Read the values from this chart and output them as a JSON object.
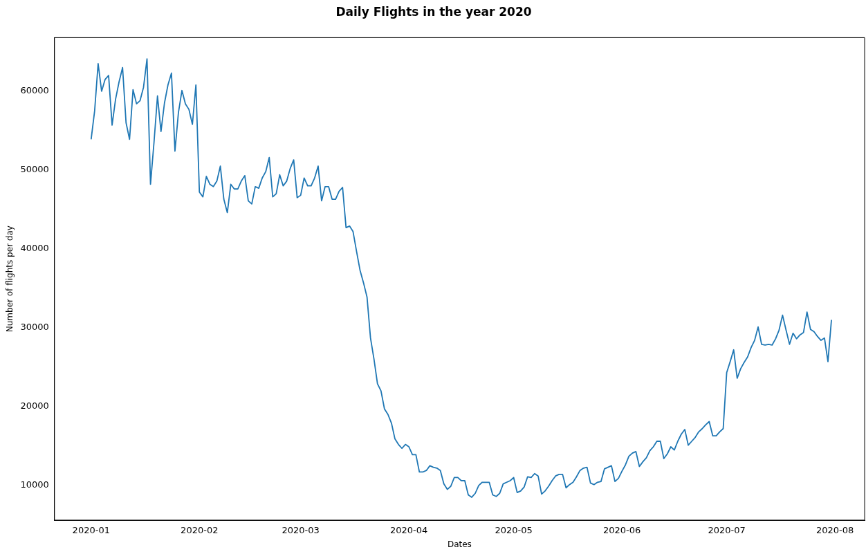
{
  "chart_data": {
    "type": "line",
    "title": "Daily Flights in the year 2020",
    "xlabel": "Dates",
    "ylabel": "Number of flights per day",
    "x": [
      "2020-01-01",
      "2020-01-02",
      "2020-01-03",
      "2020-01-04",
      "2020-01-05",
      "2020-01-06",
      "2020-01-07",
      "2020-01-08",
      "2020-01-09",
      "2020-01-10",
      "2020-01-11",
      "2020-01-12",
      "2020-01-13",
      "2020-01-14",
      "2020-01-15",
      "2020-01-16",
      "2020-01-17",
      "2020-01-18",
      "2020-01-19",
      "2020-01-20",
      "2020-01-21",
      "2020-01-22",
      "2020-01-23",
      "2020-01-24",
      "2020-01-25",
      "2020-01-26",
      "2020-01-27",
      "2020-01-28",
      "2020-01-29",
      "2020-01-30",
      "2020-01-31",
      "2020-02-01",
      "2020-02-02",
      "2020-02-03",
      "2020-02-04",
      "2020-02-05",
      "2020-02-06",
      "2020-02-07",
      "2020-02-08",
      "2020-02-09",
      "2020-02-10",
      "2020-02-11",
      "2020-02-12",
      "2020-02-13",
      "2020-02-14",
      "2020-02-15",
      "2020-02-16",
      "2020-02-17",
      "2020-02-18",
      "2020-02-19",
      "2020-02-20",
      "2020-02-21",
      "2020-02-22",
      "2020-02-23",
      "2020-02-24",
      "2020-02-25",
      "2020-02-26",
      "2020-02-27",
      "2020-02-28",
      "2020-02-29",
      "2020-03-01",
      "2020-03-02",
      "2020-03-03",
      "2020-03-04",
      "2020-03-05",
      "2020-03-06",
      "2020-03-07",
      "2020-03-08",
      "2020-03-09",
      "2020-03-10",
      "2020-03-11",
      "2020-03-12",
      "2020-03-13",
      "2020-03-14",
      "2020-03-15",
      "2020-03-16",
      "2020-03-17",
      "2020-03-18",
      "2020-03-19",
      "2020-03-20",
      "2020-03-21",
      "2020-03-22",
      "2020-03-23",
      "2020-03-24",
      "2020-03-25",
      "2020-03-26",
      "2020-03-27",
      "2020-03-28",
      "2020-03-29",
      "2020-03-30",
      "2020-03-31",
      "2020-04-01",
      "2020-04-02",
      "2020-04-03",
      "2020-04-04",
      "2020-04-05",
      "2020-04-06",
      "2020-04-07",
      "2020-04-08",
      "2020-04-09",
      "2020-04-10",
      "2020-04-11",
      "2020-04-12",
      "2020-04-13",
      "2020-04-14",
      "2020-04-15",
      "2020-04-16",
      "2020-04-17",
      "2020-04-18",
      "2020-04-19",
      "2020-04-20",
      "2020-04-21",
      "2020-04-22",
      "2020-04-23",
      "2020-04-24",
      "2020-04-25",
      "2020-04-26",
      "2020-04-27",
      "2020-04-28",
      "2020-04-29",
      "2020-04-30",
      "2020-05-01",
      "2020-05-02",
      "2020-05-03",
      "2020-05-04",
      "2020-05-05",
      "2020-05-06",
      "2020-05-07",
      "2020-05-08",
      "2020-05-09",
      "2020-05-10",
      "2020-05-11",
      "2020-05-12",
      "2020-05-13",
      "2020-05-14",
      "2020-05-15",
      "2020-05-16",
      "2020-05-17",
      "2020-05-18",
      "2020-05-19",
      "2020-05-20",
      "2020-05-21",
      "2020-05-22",
      "2020-05-23",
      "2020-05-24",
      "2020-05-25",
      "2020-05-26",
      "2020-05-27",
      "2020-05-28",
      "2020-05-29",
      "2020-05-30",
      "2020-05-31",
      "2020-06-01",
      "2020-06-02",
      "2020-06-03",
      "2020-06-04",
      "2020-06-05",
      "2020-06-06",
      "2020-06-07",
      "2020-06-08",
      "2020-06-09",
      "2020-06-10",
      "2020-06-11",
      "2020-06-12",
      "2020-06-13",
      "2020-06-14",
      "2020-06-15",
      "2020-06-16",
      "2020-06-17",
      "2020-06-18",
      "2020-06-19",
      "2020-06-20",
      "2020-06-21",
      "2020-06-22",
      "2020-06-23",
      "2020-06-24",
      "2020-06-25",
      "2020-06-26",
      "2020-06-27",
      "2020-06-28",
      "2020-06-29",
      "2020-06-30",
      "2020-07-01",
      "2020-07-02",
      "2020-07-03",
      "2020-07-04",
      "2020-07-05",
      "2020-07-06",
      "2020-07-07",
      "2020-07-08",
      "2020-07-09",
      "2020-07-10",
      "2020-07-11",
      "2020-07-12",
      "2020-07-13",
      "2020-07-14",
      "2020-07-15",
      "2020-07-16",
      "2020-07-17",
      "2020-07-18",
      "2020-07-19",
      "2020-07-20",
      "2020-07-21",
      "2020-07-22",
      "2020-07-23",
      "2020-07-24",
      "2020-07-25",
      "2020-07-26",
      "2020-07-27",
      "2020-07-28",
      "2020-07-29",
      "2020-07-30",
      "2020-07-31"
    ],
    "series": [
      {
        "color": "#1f77b4",
        "values": [
          53900,
          57500,
          63500,
          60000,
          61500,
          62000,
          55700,
          59000,
          61200,
          63000,
          56000,
          53900,
          60200,
          58400,
          58800,
          60500,
          64100,
          48200,
          53500,
          59400,
          54900,
          58500,
          60800,
          62300,
          52400,
          57300,
          60100,
          58400,
          57700,
          55800,
          60800,
          47200,
          46600,
          49200,
          48200,
          47900,
          48600,
          50500,
          46300,
          44600,
          48200,
          47600,
          47600,
          48600,
          49300,
          46100,
          45700,
          47900,
          47700,
          49000,
          49800,
          51600,
          46600,
          47000,
          49400,
          48000,
          48600,
          50200,
          51300,
          46500,
          46800,
          49000,
          48000,
          48000,
          49000,
          50500,
          46100,
          47900,
          47900,
          46300,
          46300,
          47300,
          47800,
          42700,
          42900,
          42200,
          39700,
          37300,
          35700,
          33900,
          28700,
          26000,
          22900,
          22000,
          19700,
          19000,
          17900,
          15900,
          15200,
          14700,
          15200,
          14900,
          13900,
          13900,
          11700,
          11700,
          11900,
          12500,
          12300,
          12200,
          11900,
          10200,
          9500,
          9900,
          11000,
          11000,
          10600,
          10600,
          8800,
          8500,
          9000,
          10000,
          10400,
          10400,
          10400,
          8800,
          8600,
          9000,
          10200,
          10400,
          10600,
          11000,
          9100,
          9300,
          9800,
          11100,
          11000,
          11500,
          11200,
          8900,
          9300,
          9900,
          10600,
          11200,
          11400,
          11400,
          9700,
          10100,
          10400,
          11100,
          11900,
          12200,
          12300,
          10300,
          10100,
          10400,
          10500,
          12100,
          12300,
          12500,
          10500,
          10900,
          11800,
          12600,
          13700,
          14100,
          14300,
          12400,
          13000,
          13500,
          14400,
          14900,
          15600,
          15600,
          13400,
          14000,
          14900,
          14500,
          15600,
          16500,
          17100,
          15100,
          15600,
          16100,
          16800,
          17200,
          17700,
          18100,
          16300,
          16300,
          16800,
          17200,
          24300,
          25700,
          27200,
          23600,
          24800,
          25600,
          26300,
          27500,
          28400,
          30100,
          27900,
          27800,
          27900,
          27800,
          28600,
          29700,
          31600,
          29700,
          27900,
          29300,
          28600,
          29100,
          29400,
          32000,
          29800,
          29500,
          28900,
          28400,
          28700,
          25700,
          31000
        ]
      }
    ],
    "xlim": [
      "2019-12-21T12:00",
      "2020-08-09T12:00"
    ],
    "xticks": [
      "2020-01",
      "2020-02",
      "2020-03",
      "2020-04",
      "2020-05",
      "2020-06",
      "2020-07",
      "2020-08"
    ],
    "ylim": [
      5600,
      66800
    ],
    "yticks": [
      10000,
      20000,
      30000,
      40000,
      50000,
      60000
    ],
    "grid": false,
    "legend": false,
    "marker": "none",
    "line_style": "solid"
  }
}
